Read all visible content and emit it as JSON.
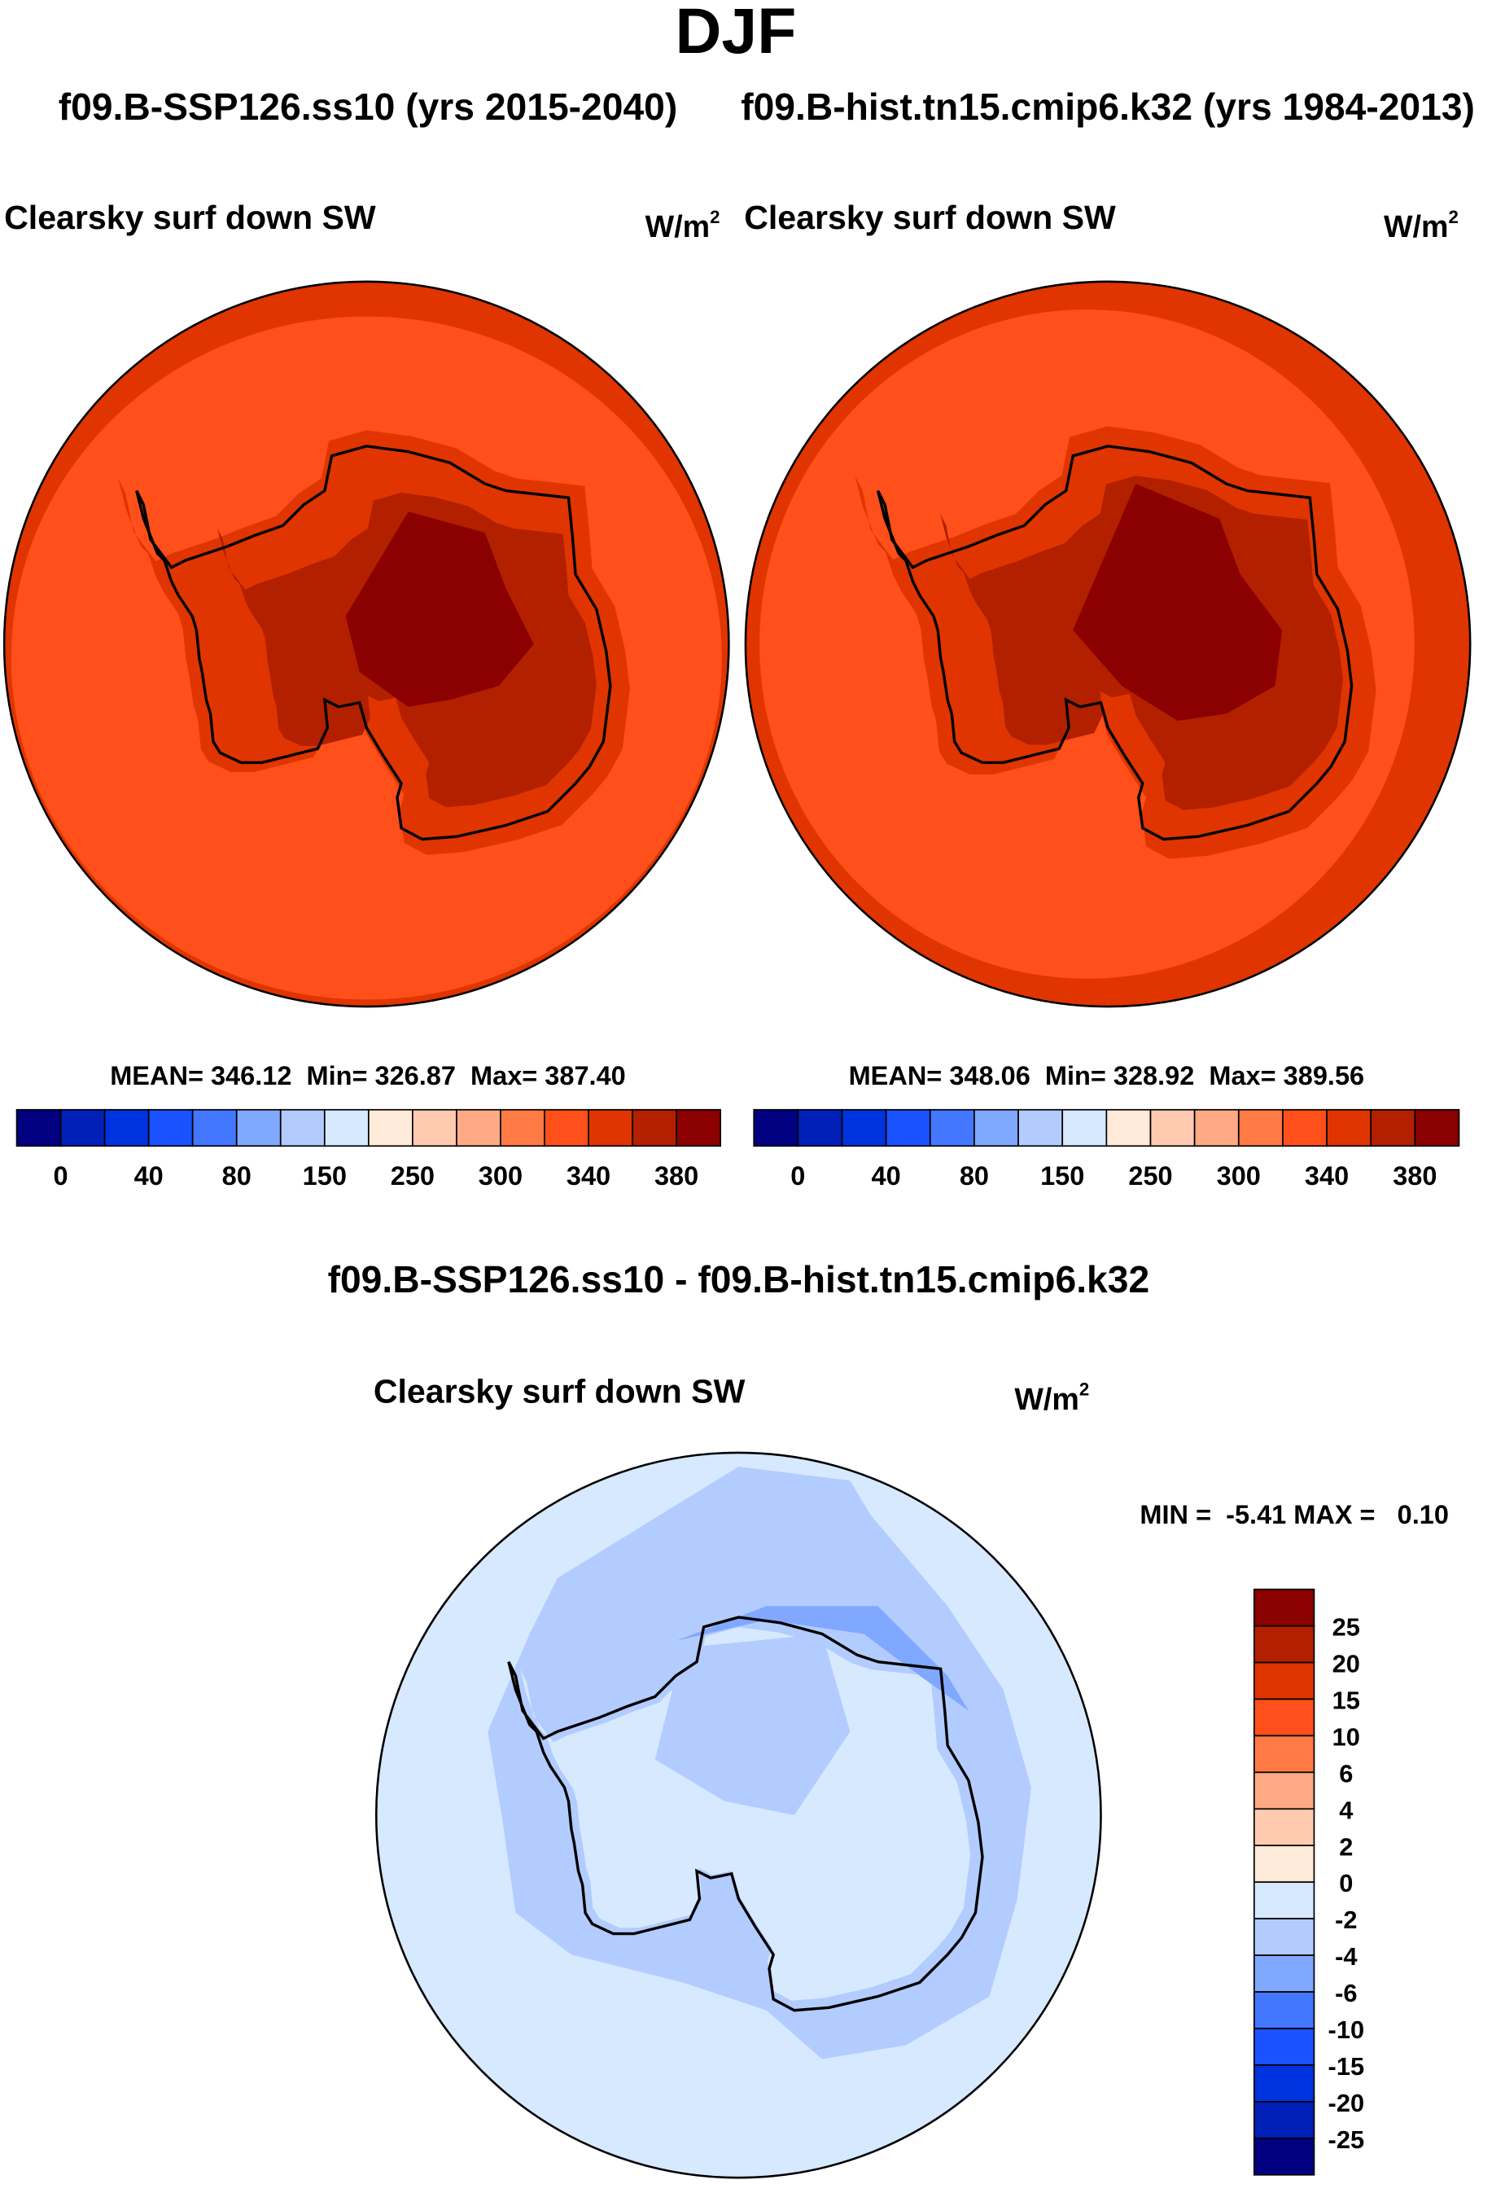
{
  "title": "DJF",
  "subtitle_left": "f09.B-SSP126.ss10 (yrs 2015-2040)",
  "subtitle_right": "f09.B-hist.tn15.cmip6.k32 (yrs 1984-2013)",
  "diff_title": "f09.B-SSP126.ss10 - f09.B-hist.tn15.cmip6.k32",
  "chart_data": [
    {
      "type": "heatmap",
      "projection": "south-polar-stereographic",
      "title": "Clearsky surf down SW",
      "units": "W/m",
      "units_sup": "2",
      "stats": "MEAN= 346.12  Min= 326.87  Max= 387.40",
      "mean": 346.12,
      "min": 326.87,
      "max": 387.4,
      "colorbar_labels": [
        "0",
        "40",
        "80",
        "150",
        "250",
        "300",
        "340",
        "380"
      ]
    },
    {
      "type": "heatmap",
      "projection": "south-polar-stereographic",
      "title": "Clearsky surf down SW",
      "units": "W/m",
      "units_sup": "2",
      "stats": "MEAN= 348.06  Min= 328.92  Max= 389.56",
      "mean": 348.06,
      "min": 328.92,
      "max": 389.56,
      "colorbar_labels": [
        "0",
        "40",
        "80",
        "150",
        "250",
        "300",
        "340",
        "380"
      ]
    },
    {
      "type": "heatmap",
      "projection": "south-polar-stereographic",
      "title": "Clearsky surf down SW",
      "units": "W/m",
      "units_sup": "2",
      "stats": "MIN =  -5.41 MAX =   0.10",
      "min": -5.41,
      "max": 0.1,
      "colorbar_labels": [
        "25",
        "20",
        "15",
        "10",
        "6",
        "4",
        "2",
        "0",
        "-2",
        "-4",
        "-6",
        "-10",
        "-15",
        "-20",
        "-25"
      ]
    }
  ],
  "colors": [
    "#000080",
    "#0020B8",
    "#0033E0",
    "#1A52FF",
    "#4477FF",
    "#80A8FF",
    "#B3CCFF",
    "#D6E9FF",
    "#FFEBD9",
    "#FFCBB0",
    "#FFAA85",
    "#FF7A45",
    "#FF4F1A",
    "#E03500",
    "#B22000",
    "#8B0000"
  ]
}
